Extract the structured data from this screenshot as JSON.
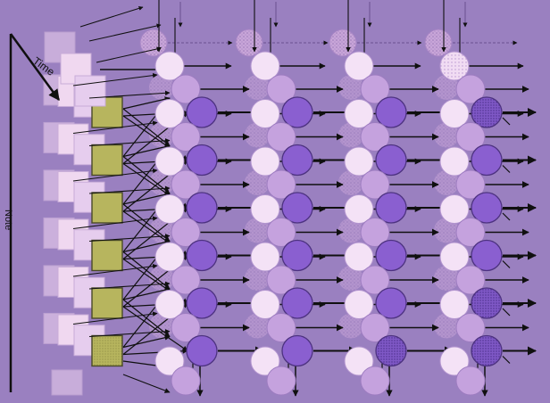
{
  "axes": {
    "time_label": "Time",
    "note_label": "Note"
  },
  "colors": {
    "background": "#9a80c0",
    "square_back": "#e7c8ea",
    "square_mid": "#f0d8f0",
    "input_square": "#b7b55e",
    "input_square_edge": "#4a4a28",
    "neuron_light": "#f4e2f6",
    "neuron_mid": "#c5a2de",
    "neuron_dark": "#8a5fd0",
    "arrow": "#101010",
    "ghost": "#c8a5d8"
  },
  "structure": {
    "note_rows": 6,
    "layers": 4
  }
}
